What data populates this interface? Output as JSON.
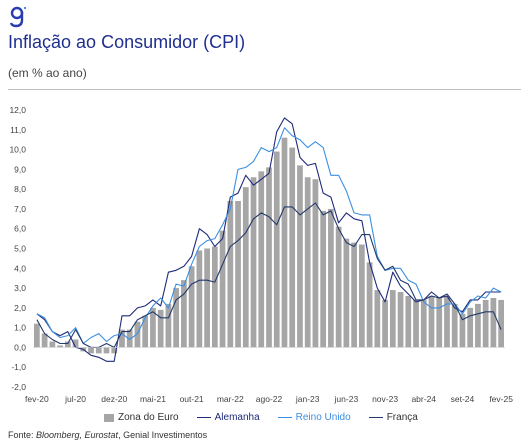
{
  "header": {
    "logo_text": "g",
    "title": "Inflação ao Consumidor (CPI)",
    "subtitle": "(em % ao ano)"
  },
  "footer": {
    "source_prefix": "Fonte: ",
    "source_italic": "Bloomberg, Eurostat",
    "source_rest": ", Genial Investimentos"
  },
  "colors": {
    "bars": "#a6a6a6",
    "alemanha": "#1f2a7a",
    "reino_unido": "#3d8fe0",
    "franca": "#243a6b",
    "title": "#1f2f8f"
  },
  "chart_data": {
    "type": "bar",
    "title": "Inflação ao Consumidor (CPI)",
    "ylabel": "(em % ao ano)",
    "ylim": [
      -2.0,
      12.0
    ],
    "y_ticks": [
      "12,0",
      "11,0",
      "10,0",
      "9,0",
      "8,0",
      "7,0",
      "6,0",
      "5,0",
      "4,0",
      "3,0",
      "2,0",
      "1,0",
      "0,0",
      "-1,0",
      "-2,0"
    ],
    "x_tick_labels": [
      "fev-20",
      "jul-20",
      "dez-20",
      "mai-21",
      "out-21",
      "mar-22",
      "ago-22",
      "jan-23",
      "jun-23",
      "nov-23",
      "abr-24",
      "set-24",
      "fev-25"
    ],
    "grid": false,
    "legend_position": "bottom",
    "categories": [
      "fev-20",
      "mar-20",
      "abr-20",
      "mai-20",
      "jun-20",
      "jul-20",
      "ago-20",
      "set-20",
      "out-20",
      "nov-20",
      "dez-20",
      "jan-21",
      "fev-21",
      "mar-21",
      "abr-21",
      "mai-21",
      "jun-21",
      "jul-21",
      "ago-21",
      "set-21",
      "out-21",
      "nov-21",
      "dez-21",
      "jan-22",
      "fev-22",
      "mar-22",
      "abr-22",
      "mai-22",
      "jun-22",
      "jul-22",
      "ago-22",
      "set-22",
      "out-22",
      "nov-22",
      "dez-22",
      "jan-23",
      "fev-23",
      "mar-23",
      "abr-23",
      "mai-23",
      "jun-23",
      "jul-23",
      "ago-23",
      "set-23",
      "out-23",
      "nov-23",
      "dez-23",
      "jan-24",
      "fev-24",
      "mar-24",
      "abr-24",
      "mai-24",
      "jun-24",
      "jul-24",
      "ago-24",
      "set-24",
      "out-24",
      "nov-24",
      "dez-24",
      "jan-25",
      "fev-25"
    ],
    "series": [
      {
        "name": "Zona do Euro",
        "kind": "bar",
        "values": [
          1.2,
          0.7,
          0.3,
          0.1,
          0.3,
          0.4,
          -0.2,
          -0.3,
          -0.3,
          -0.3,
          -0.3,
          0.9,
          0.9,
          1.3,
          1.6,
          2.0,
          1.9,
          2.2,
          3.0,
          3.4,
          4.1,
          4.9,
          5.0,
          5.1,
          5.9,
          7.4,
          7.4,
          8.1,
          8.6,
          8.9,
          9.1,
          9.9,
          10.6,
          10.1,
          9.2,
          8.6,
          8.5,
          6.9,
          7.0,
          6.1,
          5.5,
          5.3,
          5.2,
          4.3,
          2.9,
          2.4,
          2.9,
          2.8,
          2.6,
          2.4,
          2.4,
          2.6,
          2.5,
          2.6,
          2.2,
          1.7,
          2.0,
          2.2,
          2.4,
          2.5,
          2.4
        ]
      },
      {
        "name": "Alemanha",
        "kind": "line",
        "values": [
          1.7,
          1.4,
          0.8,
          0.6,
          0.8,
          0.0,
          -0.1,
          -0.4,
          -0.5,
          -0.7,
          -0.7,
          1.6,
          1.6,
          2.0,
          2.1,
          2.4,
          2.1,
          3.8,
          3.9,
          4.1,
          4.6,
          6.0,
          5.7,
          5.1,
          5.5,
          7.6,
          7.8,
          8.7,
          8.2,
          8.5,
          8.8,
          10.9,
          11.6,
          11.3,
          9.6,
          9.2,
          9.3,
          7.8,
          7.6,
          6.3,
          6.8,
          6.5,
          6.4,
          4.3,
          3.0,
          2.3,
          3.8,
          3.1,
          2.7,
          2.3,
          2.4,
          2.8,
          2.5,
          2.6,
          2.0,
          1.8,
          2.4,
          2.4,
          2.8,
          2.8,
          2.8
        ]
      },
      {
        "name": "Reino Unido",
        "kind": "line",
        "values": [
          1.7,
          1.5,
          0.8,
          0.5,
          0.6,
          1.0,
          0.2,
          0.5,
          0.7,
          0.3,
          0.6,
          0.7,
          0.4,
          0.7,
          1.5,
          2.1,
          2.5,
          2.0,
          3.2,
          3.1,
          4.2,
          5.1,
          5.4,
          5.5,
          6.2,
          7.0,
          9.0,
          9.1,
          9.4,
          10.1,
          9.9,
          10.1,
          11.1,
          10.7,
          10.5,
          10.1,
          10.4,
          10.1,
          8.7,
          8.7,
          7.9,
          6.8,
          6.7,
          6.7,
          4.6,
          3.9,
          4.0,
          4.0,
          3.4,
          3.2,
          2.3,
          2.0,
          2.0,
          2.2,
          2.2,
          1.7,
          2.3,
          2.6,
          2.5,
          3.0,
          2.8
        ]
      },
      {
        "name": "França",
        "kind": "line",
        "values": [
          1.4,
          0.7,
          0.4,
          0.2,
          0.2,
          0.9,
          0.2,
          0.0,
          0.0,
          0.2,
          0.0,
          0.8,
          0.8,
          1.4,
          1.6,
          1.8,
          1.5,
          1.5,
          2.4,
          2.7,
          3.2,
          3.4,
          3.4,
          3.3,
          4.2,
          5.1,
          5.4,
          5.8,
          6.5,
          6.8,
          6.6,
          6.2,
          7.1,
          7.1,
          6.7,
          7.0,
          7.3,
          6.7,
          6.9,
          6.0,
          5.3,
          5.1,
          5.7,
          5.7,
          4.5,
          3.9,
          4.1,
          3.4,
          3.2,
          2.4,
          2.4,
          2.6,
          2.5,
          2.7,
          2.2,
          1.4,
          1.6,
          1.7,
          1.8,
          1.8,
          0.9
        ]
      }
    ]
  }
}
